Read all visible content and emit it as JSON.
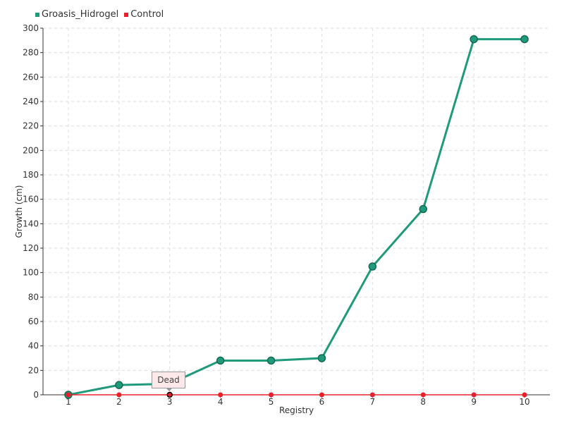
{
  "chart_data": {
    "type": "line",
    "xlabel": "Registry",
    "ylabel": "Growth (cm)",
    "x": [
      1,
      2,
      3,
      4,
      5,
      6,
      7,
      8,
      9,
      10
    ],
    "xlim": [
      0.5,
      10.5
    ],
    "ylim": [
      0,
      300
    ],
    "yticks": [
      0,
      20,
      40,
      60,
      80,
      100,
      120,
      140,
      160,
      180,
      200,
      220,
      240,
      260,
      280,
      300
    ],
    "grid": true,
    "legend_position": "top-left",
    "series": [
      {
        "name": "Groasis_Hidrogel",
        "color": "#1f9a7a",
        "values": [
          0,
          8,
          9,
          28,
          28,
          30,
          105,
          152,
          291,
          291
        ]
      },
      {
        "name": "Control",
        "color": "#e8202a",
        "values": [
          0,
          0,
          0,
          0,
          0,
          0,
          0,
          0,
          0,
          0
        ]
      }
    ],
    "tooltip": {
      "text": "Dead",
      "x": 3
    }
  }
}
